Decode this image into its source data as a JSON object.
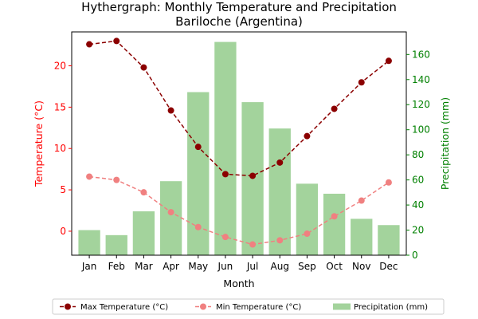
{
  "chart_data": {
    "type": "bar+line",
    "title": "Hythergraph: Monthly Temperature and Precipitation",
    "subtitle": "Bariloche (Argentina)",
    "xlabel": "Month",
    "ylabel_left": "Temperature (°C)",
    "ylabel_right": "Precipitation (mm)",
    "categories": [
      "Jan",
      "Feb",
      "Mar",
      "Apr",
      "May",
      "Jun",
      "Jul",
      "Aug",
      "Sep",
      "Oct",
      "Nov",
      "Dec"
    ],
    "ylim_left": [
      -2.9,
      24.1
    ],
    "ylim_right": [
      0,
      178
    ],
    "yticks_left": [
      0,
      5,
      10,
      15,
      20
    ],
    "yticks_right": [
      0,
      20,
      40,
      60,
      80,
      100,
      120,
      140,
      160
    ],
    "series": [
      {
        "name": "Max Temperature (°C)",
        "kind": "line",
        "axis": "left",
        "color": "#8b0000",
        "dashed": true,
        "values": [
          22.6,
          23.0,
          19.8,
          14.6,
          10.2,
          6.9,
          6.7,
          8.3,
          11.5,
          14.8,
          18.0,
          20.6
        ]
      },
      {
        "name": "Min Temperature (°C)",
        "kind": "line",
        "axis": "left",
        "color": "#f08080",
        "dashed": true,
        "values": [
          6.6,
          6.2,
          4.7,
          2.3,
          0.5,
          -0.7,
          -1.6,
          -1.1,
          -0.3,
          1.8,
          3.7,
          5.9
        ]
      },
      {
        "name": "Precipitation (mm)",
        "kind": "bar",
        "axis": "right",
        "color": "#a3d39c",
        "values": [
          20,
          16,
          35,
          59,
          130,
          170,
          122,
          101,
          57,
          49,
          29,
          24
        ]
      }
    ],
    "legend_position": "bottom"
  },
  "colors": {
    "left_axis": "#ff0000",
    "right_axis": "#008000",
    "bar": "#a3d39c"
  }
}
